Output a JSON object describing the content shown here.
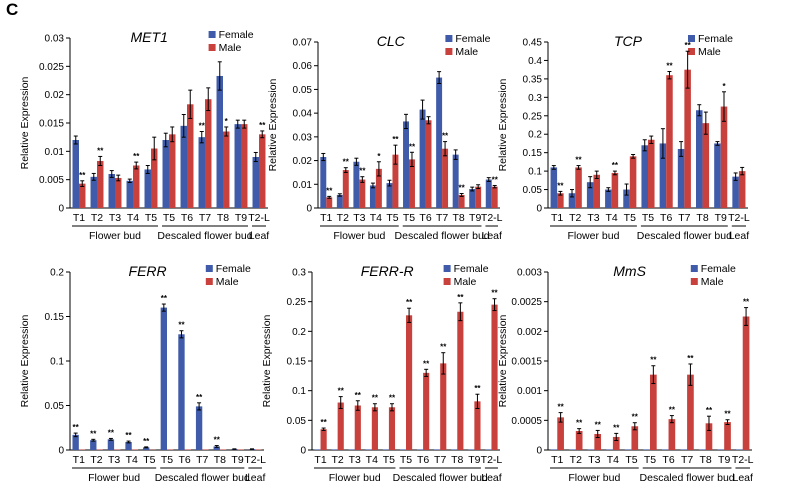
{
  "panel_label": "C",
  "legend_labels": {
    "female": "Female",
    "male": "Male"
  },
  "colors": {
    "female": "#3f5ba9",
    "male": "#c9413d",
    "axis": "#000000",
    "error": "#000000"
  },
  "chart_data": [
    {
      "type": "bar",
      "title": "MET1",
      "ylabel": "Relative Expression",
      "ylim": [
        0,
        0.03
      ],
      "yticks": [
        "0",
        "0.005",
        "0.01",
        "0.015",
        "0.02",
        "0.025",
        "0.03"
      ],
      "categories": [
        "T1",
        "T2",
        "T3",
        "T4",
        "T5",
        "T5",
        "T6",
        "T7",
        "T8",
        "T9",
        "T2-L"
      ],
      "groups": [
        {
          "label": "Flower bud",
          "start": 0,
          "end": 4
        },
        {
          "label": "Descaled flower bud",
          "start": 5,
          "end": 9
        },
        {
          "label": "Leaf",
          "start": 10,
          "end": 10
        }
      ],
      "series": [
        {
          "name": "Female",
          "values": [
            0.012,
            0.0055,
            0.006,
            0.0048,
            0.0068,
            0.012,
            0.0145,
            0.0125,
            0.0233,
            0.0148,
            0.009
          ],
          "errors": [
            0.0007,
            0.0006,
            0.0006,
            0.0003,
            0.0007,
            0.0012,
            0.002,
            0.001,
            0.0025,
            0.0007,
            0.0008
          ]
        },
        {
          "name": "Male",
          "values": [
            0.0043,
            0.0083,
            0.0053,
            0.0075,
            0.0105,
            0.013,
            0.0183,
            0.0192,
            0.0135,
            0.0148,
            0.013
          ],
          "errors": [
            0.0005,
            0.0008,
            0.0005,
            0.0006,
            0.002,
            0.0013,
            0.0025,
            0.002,
            0.0008,
            0.0007,
            0.0006
          ]
        }
      ],
      "significance": [
        {
          "index": 0,
          "series": 1,
          "label": "**"
        },
        {
          "index": 1,
          "series": 1,
          "label": "**"
        },
        {
          "index": 3,
          "series": 1,
          "label": "**"
        },
        {
          "index": 7,
          "series": 0,
          "label": "**"
        },
        {
          "index": 8,
          "series": 1,
          "label": "*"
        },
        {
          "index": 10,
          "series": 1,
          "label": "**"
        }
      ],
      "legend_position": "top-right"
    },
    {
      "type": "bar",
      "title": "CLC",
      "ylabel": "Relative Expression",
      "ylim": [
        0,
        0.07
      ],
      "yticks": [
        "0",
        "0.01",
        "0.02",
        "0.03",
        "0.04",
        "0.05",
        "0.06",
        "0.07"
      ],
      "categories": [
        "T1",
        "T2",
        "T3",
        "T4",
        "T5",
        "T5",
        "T6",
        "T7",
        "T8",
        "T9",
        "T2-L"
      ],
      "groups": [
        {
          "label": "Flower bud",
          "start": 0,
          "end": 4
        },
        {
          "label": "Descaled flower bud",
          "start": 5,
          "end": 9
        },
        {
          "label": "Leaf",
          "start": 10,
          "end": 10
        }
      ],
      "series": [
        {
          "name": "Female",
          "values": [
            0.0215,
            0.0055,
            0.0195,
            0.0095,
            0.0105,
            0.0365,
            0.0415,
            0.055,
            0.0225,
            0.008,
            0.012
          ],
          "errors": [
            0.0015,
            0.0005,
            0.0015,
            0.001,
            0.0012,
            0.003,
            0.004,
            0.0025,
            0.002,
            0.0008,
            0.0008
          ]
        },
        {
          "name": "Male",
          "values": [
            0.0045,
            0.016,
            0.012,
            0.0165,
            0.0225,
            0.0205,
            0.037,
            0.025,
            0.0055,
            0.009,
            0.009
          ],
          "errors": [
            0.0004,
            0.001,
            0.0012,
            0.003,
            0.004,
            0.003,
            0.0015,
            0.003,
            0.0006,
            0.0008,
            0.0005
          ]
        }
      ],
      "significance": [
        {
          "index": 0,
          "series": 1,
          "label": "**"
        },
        {
          "index": 1,
          "series": 1,
          "label": "**"
        },
        {
          "index": 2,
          "series": 1,
          "label": "**"
        },
        {
          "index": 3,
          "series": 1,
          "label": "*"
        },
        {
          "index": 4,
          "series": 1,
          "label": "**"
        },
        {
          "index": 5,
          "series": 1,
          "label": "**"
        },
        {
          "index": 7,
          "series": 1,
          "label": "**"
        },
        {
          "index": 8,
          "series": 1,
          "label": "**"
        },
        {
          "index": 10,
          "series": 1,
          "label": "**"
        }
      ],
      "legend_position": "top-right"
    },
    {
      "type": "bar",
      "title": "TCP",
      "ylabel": "Relative Expression",
      "ylim": [
        0,
        0.45
      ],
      "yticks": [
        "0",
        "0.05",
        "0.1",
        "0.15",
        "0.2",
        "0.25",
        "0.3",
        "0.35",
        "0.4",
        "0.45"
      ],
      "categories": [
        "T1",
        "T2",
        "T3",
        "T4",
        "T5",
        "T5",
        "T6",
        "T7",
        "T8",
        "T9",
        "T2-L"
      ],
      "groups": [
        {
          "label": "Flower bud",
          "start": 0,
          "end": 4
        },
        {
          "label": "Descaled flower bud",
          "start": 5,
          "end": 9
        },
        {
          "label": "Leaf",
          "start": 10,
          "end": 10
        }
      ],
      "series": [
        {
          "name": "Female",
          "values": [
            0.11,
            0.04,
            0.07,
            0.05,
            0.05,
            0.17,
            0.175,
            0.16,
            0.265,
            0.175,
            0.085
          ],
          "errors": [
            0.005,
            0.01,
            0.015,
            0.005,
            0.015,
            0.015,
            0.04,
            0.02,
            0.015,
            0.005,
            0.01
          ]
        },
        {
          "name": "Male",
          "values": [
            0.04,
            0.11,
            0.09,
            0.095,
            0.14,
            0.185,
            0.36,
            0.375,
            0.23,
            0.275,
            0.1
          ],
          "errors": [
            0.005,
            0.005,
            0.01,
            0.005,
            0.005,
            0.01,
            0.01,
            0.05,
            0.03,
            0.04,
            0.01
          ]
        }
      ],
      "significance": [
        {
          "index": 0,
          "series": 1,
          "label": "**"
        },
        {
          "index": 1,
          "series": 1,
          "label": "**"
        },
        {
          "index": 3,
          "series": 1,
          "label": "**"
        },
        {
          "index": 6,
          "series": 1,
          "label": "**"
        },
        {
          "index": 7,
          "series": 1,
          "label": "**"
        },
        {
          "index": 9,
          "series": 1,
          "label": "*"
        }
      ],
      "legend_position": "top-right"
    },
    {
      "type": "bar",
      "title": "FERR",
      "ylabel": "Relative Expression",
      "ylim": [
        0,
        0.2
      ],
      "yticks": [
        "0",
        "0.05",
        "0.1",
        "0.15",
        "0.2"
      ],
      "categories": [
        "T1",
        "T2",
        "T3",
        "T4",
        "T5",
        "T5",
        "T6",
        "T7",
        "T8",
        "T9",
        "T2-L"
      ],
      "groups": [
        {
          "label": "Flower bud",
          "start": 0,
          "end": 4
        },
        {
          "label": "Descaled flower bud",
          "start": 5,
          "end": 9
        },
        {
          "label": "Leaf",
          "start": 10,
          "end": 10
        }
      ],
      "series": [
        {
          "name": "Female",
          "values": [
            0.017,
            0.011,
            0.012,
            0.009,
            0.003,
            0.16,
            0.13,
            0.049,
            0.004,
            0.001,
            0.001
          ],
          "errors": [
            0.002,
            0.001,
            0.001,
            0.001,
            0.0005,
            0.004,
            0.004,
            0.004,
            0.001,
            0.0003,
            0.0003
          ]
        },
        {
          "name": "Male",
          "values": [
            0.0005,
            0.0005,
            0.0005,
            0.0005,
            0.0003,
            0.0005,
            0.0005,
            0.0005,
            0.0005,
            0.0005,
            0.0005
          ],
          "errors": [
            0,
            0,
            0,
            0,
            0,
            0,
            0,
            0,
            0,
            0,
            0
          ]
        }
      ],
      "significance": [
        {
          "index": 0,
          "series": 0,
          "label": "**"
        },
        {
          "index": 1,
          "series": 0,
          "label": "**"
        },
        {
          "index": 2,
          "series": 0,
          "label": "**"
        },
        {
          "index": 3,
          "series": 0,
          "label": "**"
        },
        {
          "index": 4,
          "series": 0,
          "label": "**"
        },
        {
          "index": 5,
          "series": 0,
          "label": "**"
        },
        {
          "index": 6,
          "series": 0,
          "label": "**"
        },
        {
          "index": 7,
          "series": 0,
          "label": "**"
        },
        {
          "index": 8,
          "series": 0,
          "label": "**"
        }
      ],
      "legend_position": "top-right"
    },
    {
      "type": "bar",
      "title": "FERR-R",
      "ylabel": "Relative Expression",
      "ylim": [
        0,
        0.3
      ],
      "yticks": [
        "0",
        "0.05",
        "0.1",
        "0.15",
        "0.2",
        "0.25",
        "0.3"
      ],
      "categories": [
        "T1",
        "T2",
        "T3",
        "T4",
        "T5",
        "T5",
        "T6",
        "T7",
        "T8",
        "T9",
        "T2-L"
      ],
      "groups": [
        {
          "label": "Flower bud",
          "start": 0,
          "end": 4
        },
        {
          "label": "Descaled flower bud",
          "start": 5,
          "end": 9
        },
        {
          "label": "Leaf",
          "start": 10,
          "end": 10
        }
      ],
      "series": [
        {
          "name": "Female",
          "values": [
            0.001,
            0.001,
            0.001,
            0.001,
            0.001,
            0.001,
            0.001,
            0.001,
            0.001,
            0.001,
            0.001
          ],
          "errors": [
            0,
            0,
            0,
            0,
            0,
            0,
            0,
            0,
            0,
            0,
            0
          ]
        },
        {
          "name": "Male",
          "values": [
            0.035,
            0.08,
            0.075,
            0.072,
            0.072,
            0.227,
            0.13,
            0.146,
            0.233,
            0.082,
            0.245
          ],
          "errors": [
            0.002,
            0.01,
            0.008,
            0.006,
            0.006,
            0.012,
            0.006,
            0.018,
            0.015,
            0.012,
            0.01
          ]
        }
      ],
      "significance": [
        {
          "index": 0,
          "series": 1,
          "label": "**"
        },
        {
          "index": 1,
          "series": 1,
          "label": "**"
        },
        {
          "index": 2,
          "series": 1,
          "label": "**"
        },
        {
          "index": 3,
          "series": 1,
          "label": "**"
        },
        {
          "index": 4,
          "series": 1,
          "label": "**"
        },
        {
          "index": 5,
          "series": 1,
          "label": "**"
        },
        {
          "index": 6,
          "series": 1,
          "label": "**"
        },
        {
          "index": 7,
          "series": 1,
          "label": "**"
        },
        {
          "index": 8,
          "series": 1,
          "label": "**"
        },
        {
          "index": 9,
          "series": 1,
          "label": "**"
        },
        {
          "index": 10,
          "series": 1,
          "label": "**"
        }
      ],
      "legend_position": "top-right"
    },
    {
      "type": "bar",
      "title": "MmS",
      "ylabel": "Relative Expression",
      "ylim": [
        0,
        0.003
      ],
      "yticks": [
        "0",
        "0.0005",
        "0.001",
        "0.0015",
        "0.002",
        "0.0025",
        "0.003"
      ],
      "categories": [
        "T1",
        "T2",
        "T3",
        "T4",
        "T5",
        "T5",
        "T6",
        "T7",
        "T8",
        "T9",
        "T2-L"
      ],
      "groups": [
        {
          "label": "Flower bud",
          "start": 0,
          "end": 4
        },
        {
          "label": "Descaled flower bud",
          "start": 5,
          "end": 9
        },
        {
          "label": "Leaf",
          "start": 10,
          "end": 10
        }
      ],
      "series": [
        {
          "name": "Female",
          "values": [
            1e-05,
            1e-05,
            1e-05,
            1e-05,
            1e-05,
            1e-05,
            1e-05,
            1e-05,
            1e-05,
            1e-05,
            1e-05
          ],
          "errors": [
            0,
            0,
            0,
            0,
            0,
            0,
            0,
            0,
            0,
            0,
            0
          ]
        },
        {
          "name": "Male",
          "values": [
            0.00055,
            0.00032,
            0.00027,
            0.00022,
            0.0004,
            0.00127,
            0.00052,
            0.00127,
            0.00045,
            0.00047,
            0.00225
          ],
          "errors": [
            8e-05,
            4e-05,
            6e-05,
            6e-05,
            6e-05,
            0.00015,
            6e-05,
            0.00018,
            0.00012,
            4e-05,
            0.00015
          ]
        }
      ],
      "significance": [
        {
          "index": 0,
          "series": 1,
          "label": "**"
        },
        {
          "index": 1,
          "series": 1,
          "label": "**"
        },
        {
          "index": 2,
          "series": 1,
          "label": "**"
        },
        {
          "index": 3,
          "series": 1,
          "label": "**"
        },
        {
          "index": 4,
          "series": 1,
          "label": "**"
        },
        {
          "index": 5,
          "series": 1,
          "label": "**"
        },
        {
          "index": 6,
          "series": 1,
          "label": "**"
        },
        {
          "index": 7,
          "series": 1,
          "label": "**"
        },
        {
          "index": 8,
          "series": 1,
          "label": "**"
        },
        {
          "index": 9,
          "series": 1,
          "label": "**"
        },
        {
          "index": 10,
          "series": 1,
          "label": "**"
        }
      ],
      "legend_position": "top-right"
    }
  ]
}
